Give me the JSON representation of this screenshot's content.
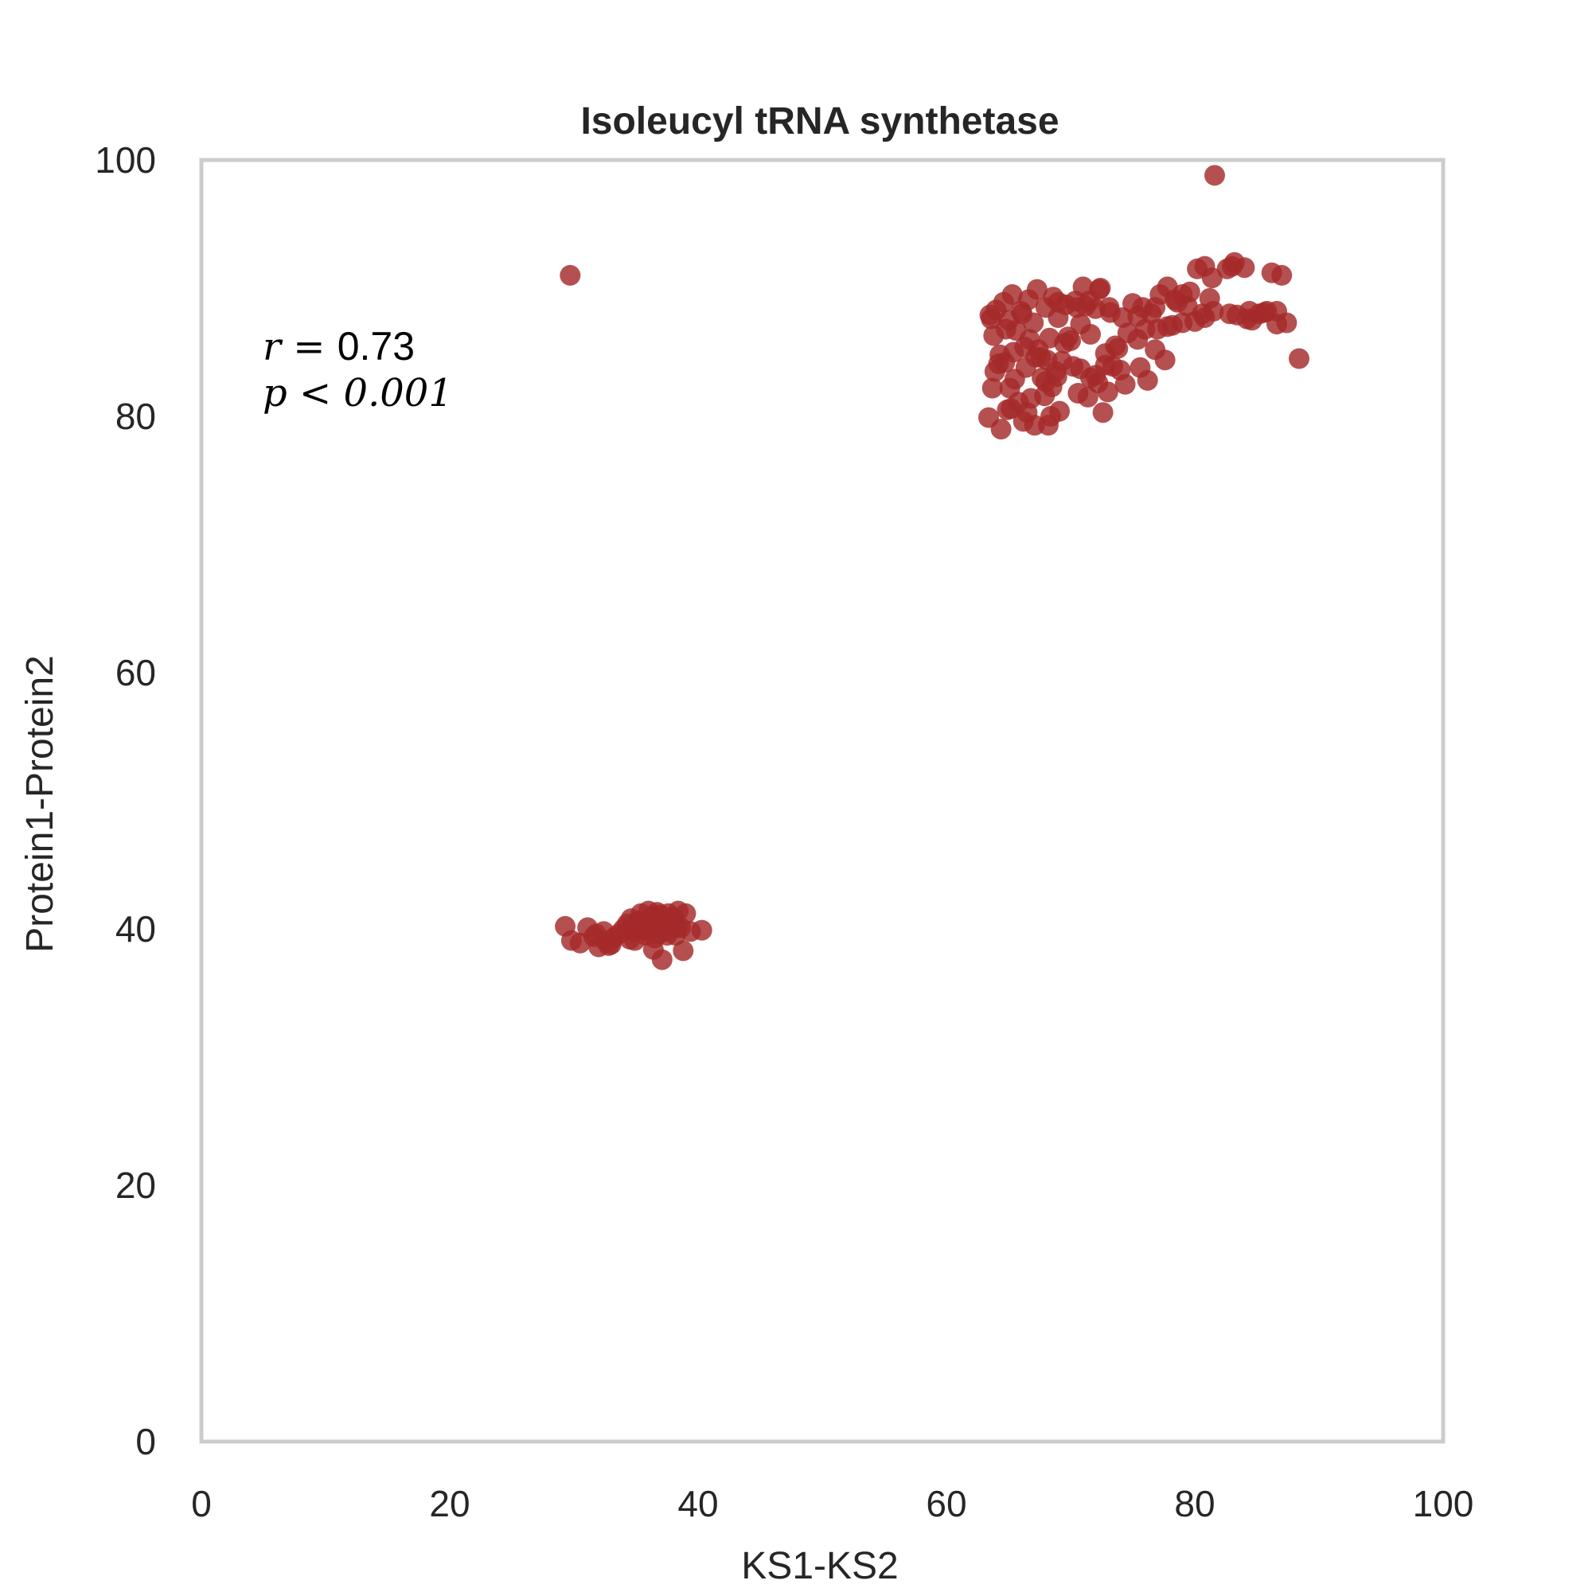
{
  "chart_data": {
    "type": "scatter",
    "title": "Isoleucyl tRNA synthetase",
    "xlabel": "KS1-KS2",
    "ylabel": "Protein1-Protein2",
    "xlim": [
      0,
      100
    ],
    "ylim": [
      0,
      100
    ],
    "xticks": [
      "0",
      "20",
      "40",
      "60",
      "80",
      "100"
    ],
    "yticks": [
      "0",
      "20",
      "40",
      "60",
      "80",
      "100"
    ],
    "grid": false,
    "annotation": {
      "r_label": "r = ",
      "r_value": "0.73",
      "p_label": "p < 0.001"
    },
    "color": "#a52a2a",
    "series": [
      {
        "x": [
          29.7,
          81.6,
          29.3,
          29.8,
          30.5,
          31.1,
          31.6,
          32.0,
          32.4,
          32.8,
          33.2,
          33.6,
          34.0,
          34.3,
          34.6,
          34.9,
          35.2,
          35.4,
          35.6,
          35.8,
          36.0,
          36.2,
          36.4,
          36.6,
          36.8,
          37.0,
          37.2,
          37.4,
          37.6,
          37.8,
          38.0,
          38.2,
          38.4,
          38.6,
          38.8,
          39.0,
          39.4,
          40.3,
          31.8,
          33.0,
          34.5,
          35.1,
          35.7,
          36.3,
          36.9,
          37.5,
          38.1,
          35.9,
          36.5,
          37.1,
          34.8,
          38.3,
          32.6,
          36.7,
          63.5,
          63.8,
          64.0,
          64.3,
          64.6,
          65.0,
          65.3,
          65.6,
          66.0,
          66.3,
          66.6,
          67.0,
          67.3,
          67.6,
          68.0,
          68.3,
          68.6,
          69.0,
          69.3,
          69.6,
          70.0,
          70.4,
          70.8,
          71.2,
          71.6,
          72.0,
          72.4,
          72.8,
          73.2,
          73.6,
          74.0,
          63.6,
          64.2,
          64.8,
          65.4,
          66.1,
          66.7,
          67.4,
          68.1,
          68.8,
          69.5,
          70.2,
          63.9,
          64.7,
          65.5,
          66.4,
          67.2,
          68.0,
          68.9,
          65.1,
          66.8,
          67.7,
          68.5,
          70.6,
          71.4,
          72.2,
          73.0,
          63.4,
          64.4,
          65.2,
          66.2,
          67.1,
          68.2,
          69.1,
          64.9,
          66.5,
          68.4,
          63.7,
          65.8,
          67.9,
          70.5,
          71.0,
          71.5,
          72.3,
          73.1,
          74.2,
          75.0,
          75.8,
          76.5,
          77.2,
          77.8,
          78.4,
          79.0,
          79.6,
          80.2,
          80.8,
          81.5,
          82.8,
          83.2,
          84.0,
          84.6,
          85.2,
          85.8,
          86.2,
          86.6,
          87.0,
          87.4,
          88.4,
          72.0,
          72.6,
          73.4,
          74.6,
          75.4,
          76.2,
          76.8,
          77.6,
          78.2,
          79.0,
          80.0,
          80.6,
          81.2,
          75.6,
          76.0,
          77.0,
          81.4,
          82.6,
          83.0,
          83.4,
          85.6,
          86.6,
          84.2,
          84.4,
          80.8,
          79.4,
          78.6,
          77.8,
          76.8,
          75.4,
          74.4,
          73.8,
          72.8,
          71.6,
          70.8,
          69.8,
          69.0,
          68.2
        ]
      },
      {
        "y": [
          91.0,
          98.8,
          40.2,
          39.1,
          38.9,
          40.1,
          39.4,
          38.6,
          39.8,
          38.7,
          39.3,
          39.6,
          40.0,
          40.4,
          40.8,
          39.1,
          40.6,
          41.2,
          40.2,
          39.5,
          41.4,
          40.0,
          38.4,
          40.8,
          39.6,
          41.1,
          40.5,
          39.8,
          41.2,
          40.3,
          40.9,
          39.5,
          41.4,
          40.1,
          38.3,
          41.2,
          39.8,
          39.9,
          39.6,
          38.8,
          39.2,
          40.5,
          39.9,
          41.0,
          40.2,
          39.5,
          40.7,
          40.6,
          39.3,
          37.6,
          39.8,
          40.1,
          39.0,
          41.3,
          87.9,
          86.3,
          88.3,
          84.8,
          88.9,
          87.5,
          89.5,
          86.7,
          88.2,
          85.4,
          89.1,
          87.3,
          89.9,
          84.6,
          88.5,
          86.1,
          89.3,
          87.7,
          84.3,
          88.7,
          85.9,
          89.0,
          87.2,
          88.6,
          86.4,
          88.4,
          90.0,
          84.9,
          88.1,
          85.5,
          83.6,
          87.6,
          84.1,
          86.8,
          85.0,
          88.0,
          86.0,
          85.2,
          84.4,
          83.5,
          85.7,
          83.9,
          83.5,
          84.2,
          82.9,
          83.8,
          84.6,
          82.7,
          83.1,
          82.2,
          81.4,
          83.0,
          82.3,
          81.8,
          81.5,
          82.6,
          81.9,
          79.9,
          79.0,
          80.6,
          79.6,
          79.3,
          79.3,
          80.4,
          80.5,
          80.3,
          80.0,
          82.2,
          81.1,
          81.6,
          88.5,
          90.1,
          89.0,
          89.9,
          88.5,
          87.7,
          88.8,
          88.5,
          88.0,
          89.5,
          90.1,
          89.1,
          89.5,
          89.7,
          91.5,
          91.7,
          88.2,
          88.0,
          92.0,
          91.6,
          87.5,
          88.0,
          88.2,
          91.2,
          88.2,
          91.0,
          87.3,
          84.5,
          83.2,
          80.3,
          83.9,
          86.5,
          86.0,
          82.8,
          85.2,
          84.4,
          87.1,
          87.3,
          87.4,
          88.0,
          89.2,
          83.8,
          86.8,
          86.8,
          90.8,
          91.5,
          91.7,
          87.9,
          88.1,
          87.2,
          87.6,
          88.2,
          87.7,
          88.6,
          88.9,
          87.0,
          88.5,
          87.8,
          82.5,
          85.3,
          84.0,
          83.0,
          83.7,
          86.2,
          88.9
        ]
      }
    ]
  }
}
